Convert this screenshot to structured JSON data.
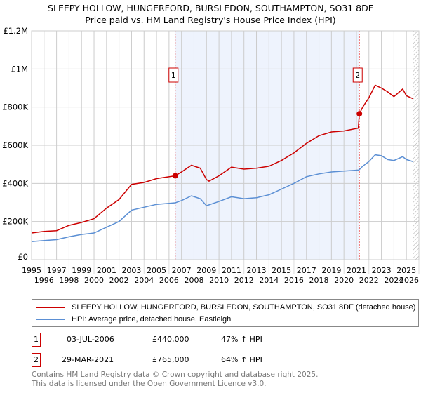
{
  "title": "SLEEPY HOLLOW, HUNGERFORD, BURSLEDON, SOUTHAMPTON, SO31 8DF",
  "subtitle": "Price paid vs. HM Land Registry's House Price Index (HPI)",
  "chart_data": {
    "type": "line",
    "title": "SLEEPY HOLLOW, HUNGERFORD, BURSLEDON, SOUTHAMPTON, SO31 8DF",
    "subtitle": "Price paid vs. HM Land Registry's House Price Index (HPI)",
    "xlim": [
      1995,
      2026
    ],
    "ylim": [
      0,
      1200000
    ],
    "x_ticks": [
      1995,
      1996,
      1997,
      1998,
      1999,
      2000,
      2001,
      2002,
      2003,
      2004,
      2005,
      2006,
      2007,
      2008,
      2009,
      2010,
      2011,
      2012,
      2013,
      2014,
      2015,
      2016,
      2017,
      2018,
      2019,
      2020,
      2021,
      2022,
      2023,
      2024,
      2025,
      2026
    ],
    "y_ticks": [
      {
        "v": 0,
        "label": "£0"
      },
      {
        "v": 200000,
        "label": "£200K"
      },
      {
        "v": 400000,
        "label": "£400K"
      },
      {
        "v": 600000,
        "label": "£600K"
      },
      {
        "v": 800000,
        "label": "£800K"
      },
      {
        "v": 1000000,
        "label": "£1M"
      },
      {
        "v": 1200000,
        "label": "£1.2M"
      }
    ],
    "grid": true,
    "shaded_range": [
      2006.5,
      2021.24
    ],
    "hatch_from": 2025.5,
    "series": [
      {
        "name": "SLEEPY HOLLOW, HUNGERFORD, BURSLEDON, SOUTHAMPTON, SO31 8DF (detached house)",
        "color": "#cc0000",
        "x": [
          1995,
          1996,
          1997,
          1998,
          1999,
          2000,
          2001,
          2002,
          2003,
          2004,
          2005,
          2006.5,
          2007,
          2007.8,
          2008.5,
          2009,
          2009.2,
          2010,
          2011,
          2012,
          2013,
          2014,
          2015,
          2016,
          2017,
          2018,
          2019,
          2020,
          2021.15,
          2021.24,
          2021.5,
          2022,
          2022.5,
          2023,
          2023.5,
          2024,
          2024.7,
          2025,
          2025.5
        ],
        "y": [
          140000,
          148000,
          152000,
          180000,
          195000,
          215000,
          270000,
          315000,
          395000,
          405000,
          425000,
          440000,
          460000,
          495000,
          480000,
          420000,
          412000,
          440000,
          485000,
          475000,
          480000,
          490000,
          520000,
          560000,
          610000,
          650000,
          670000,
          675000,
          690000,
          765000,
          800000,
          850000,
          915000,
          900000,
          880000,
          855000,
          895000,
          860000,
          845000
        ]
      },
      {
        "name": "HPI: Average price, detached house, Eastleigh",
        "color": "#5b8fd4",
        "x": [
          1995,
          1996,
          1997,
          1998,
          1999,
          2000,
          2001,
          2002,
          2003,
          2004,
          2005,
          2006.5,
          2007,
          2007.8,
          2008.5,
          2009,
          2010,
          2011,
          2012,
          2013,
          2014,
          2015,
          2016,
          2017,
          2018,
          2019,
          2020,
          2021.2,
          2021.5,
          2022,
          2022.5,
          2023,
          2023.5,
          2024,
          2024.7,
          2025,
          2025.5
        ],
        "y": [
          95000,
          100000,
          105000,
          120000,
          132000,
          140000,
          170000,
          200000,
          260000,
          275000,
          290000,
          298000,
          310000,
          335000,
          320000,
          283000,
          305000,
          330000,
          320000,
          325000,
          340000,
          370000,
          400000,
          435000,
          450000,
          460000,
          465000,
          470000,
          490000,
          515000,
          550000,
          545000,
          525000,
          520000,
          540000,
          525000,
          515000
        ]
      }
    ],
    "sales": [
      {
        "label": "1",
        "x": 2006.5,
        "y": 440000
      },
      {
        "label": "2",
        "x": 2021.24,
        "y": 765000
      }
    ]
  },
  "legend": [
    {
      "label": "SLEEPY HOLLOW, HUNGERFORD, BURSLEDON, SOUTHAMPTON, SO31 8DF (detached house)",
      "color": "#cc0000"
    },
    {
      "label": "HPI: Average price, detached house, Eastleigh",
      "color": "#5b8fd4"
    }
  ],
  "transactions": [
    {
      "num": "1",
      "date": "03-JUL-2006",
      "price": "£440,000",
      "hpi": "47% ↑ HPI"
    },
    {
      "num": "2",
      "date": "29-MAR-2021",
      "price": "£765,000",
      "hpi": "64% ↑ HPI"
    }
  ],
  "footer": [
    "Contains HM Land Registry data © Crown copyright and database right 2025.",
    "This data is licensed under the Open Government Licence v3.0."
  ]
}
